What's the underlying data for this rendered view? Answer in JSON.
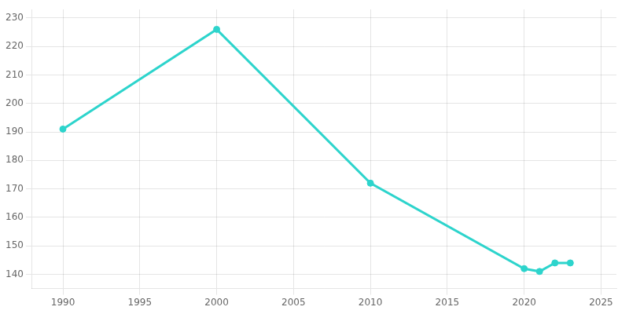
{
  "chart_data": {
    "type": "line",
    "x": [
      1990,
      2000,
      2010,
      2020,
      2021,
      2022,
      2023
    ],
    "values": [
      191,
      226,
      172,
      142,
      141,
      144,
      144
    ],
    "color": "#2DD4CC",
    "marker": "circle",
    "xlim": [
      1988,
      2026
    ],
    "ylim": [
      135,
      233
    ],
    "xticks": [
      1990,
      1995,
      2000,
      2005,
      2010,
      2015,
      2020,
      2025
    ],
    "yticks": [
      140,
      150,
      160,
      170,
      180,
      190,
      200,
      210,
      220,
      230
    ],
    "grid": true
  }
}
